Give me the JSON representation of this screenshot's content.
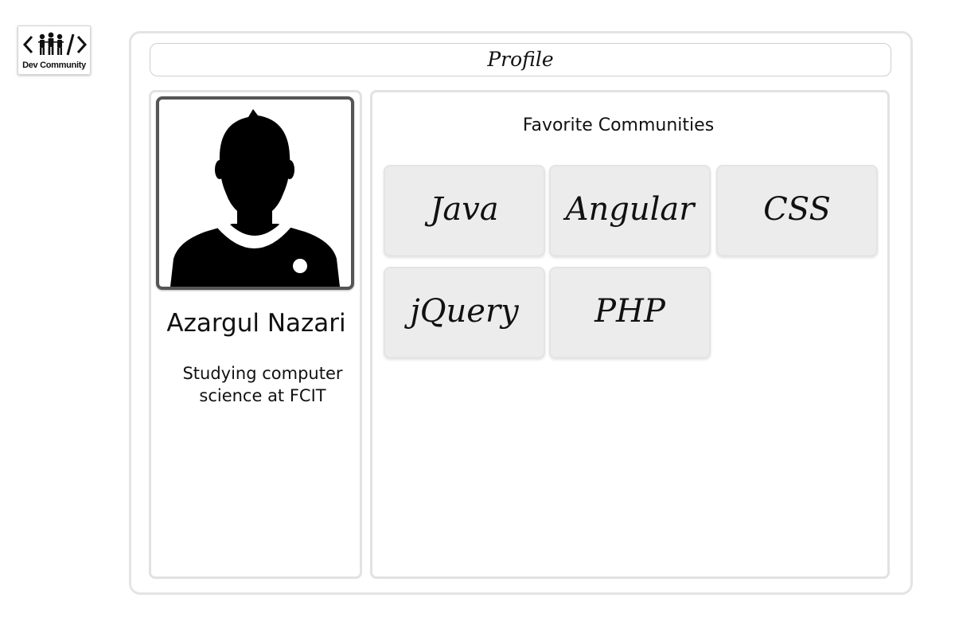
{
  "logo": {
    "text": "Dev Community",
    "icon": "people-code-icon"
  },
  "header": {
    "title": "Profile"
  },
  "profile": {
    "avatar_icon": "user-silhouette-icon",
    "name": "Azargul Nazari",
    "bio_line1": "Studying computer",
    "bio_line2": "science at FCIT"
  },
  "communities": {
    "title": "Favorite Communities",
    "items": [
      {
        "label": "Java"
      },
      {
        "label": "Angular"
      },
      {
        "label": "CSS"
      },
      {
        "label": "jQuery"
      },
      {
        "label": "PHP"
      }
    ]
  }
}
